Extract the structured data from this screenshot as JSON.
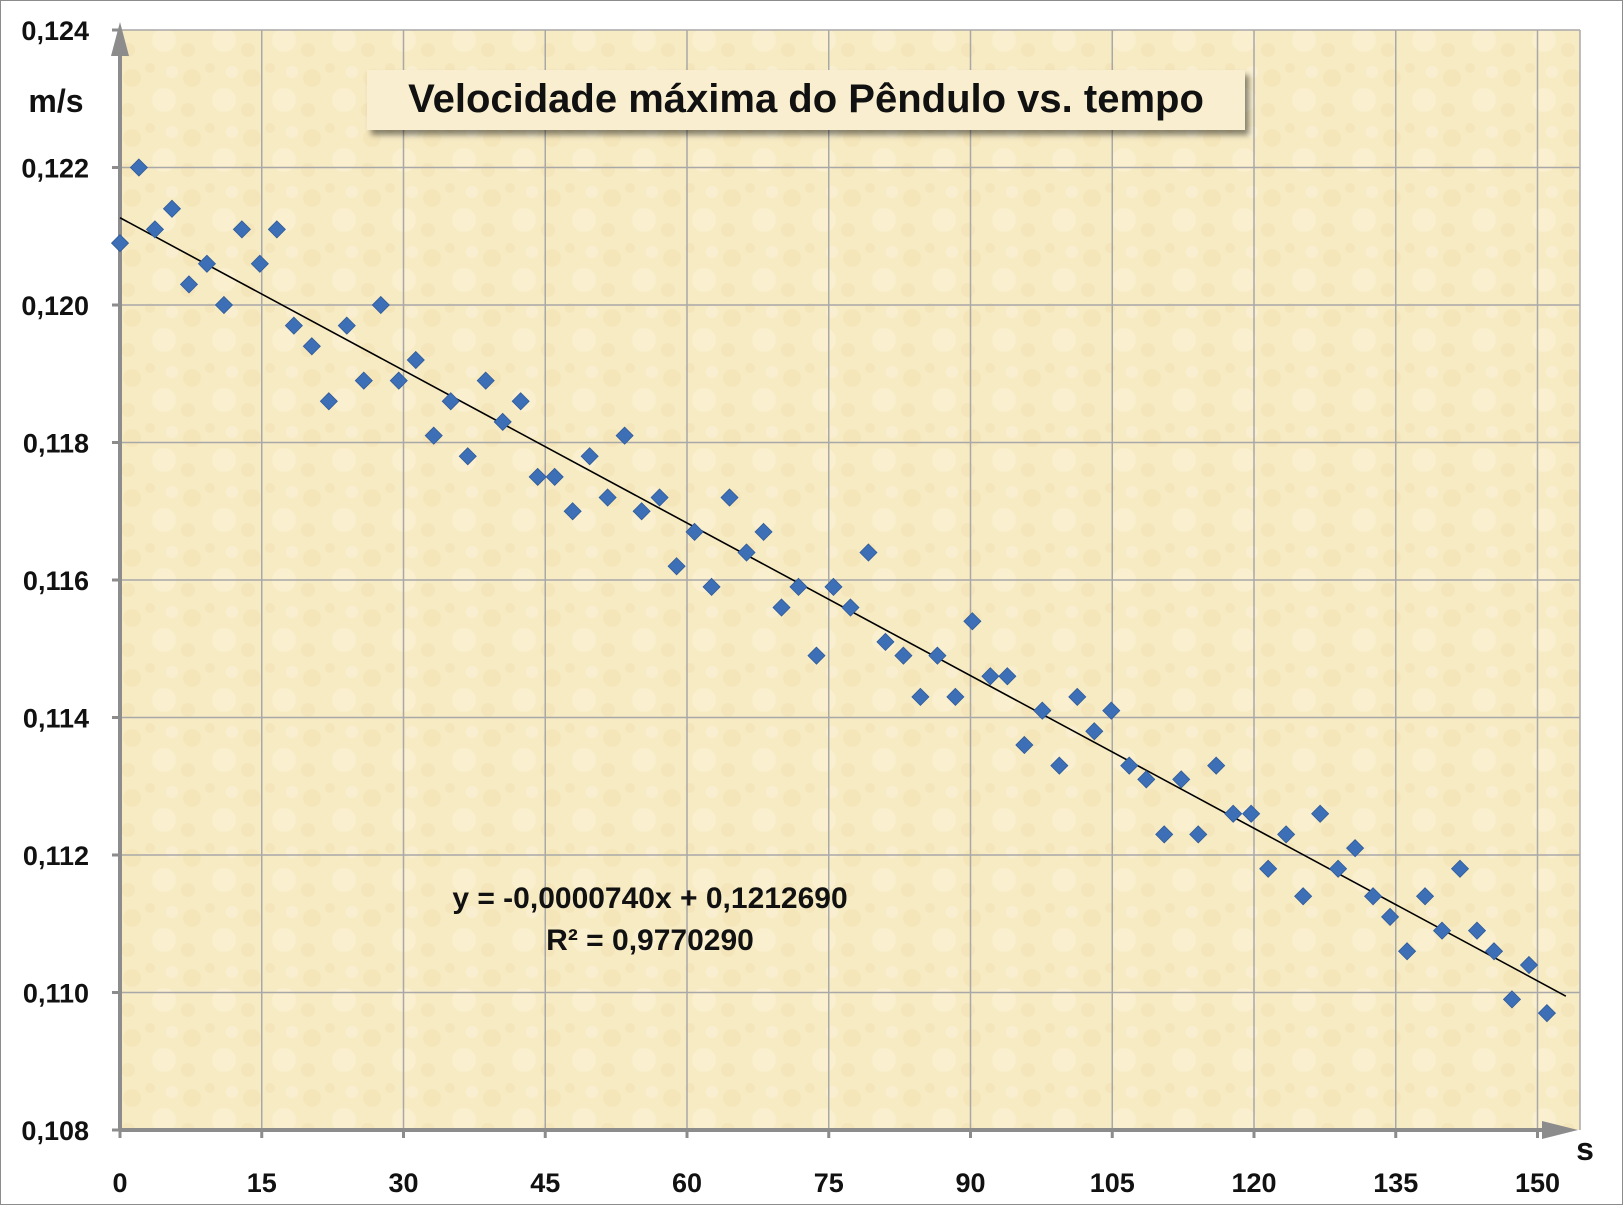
{
  "chart_data": {
    "type": "scatter",
    "title": "Velocidade máxima do Pêndulo vs. tempo",
    "xlabel": "s",
    "ylabel": "m/s",
    "xlim": [
      0,
      155
    ],
    "ylim": [
      0.108,
      0.124
    ],
    "x_ticks": [
      0,
      15,
      30,
      45,
      60,
      75,
      90,
      105,
      120,
      135,
      150
    ],
    "x_tick_labels": [
      "0",
      "15",
      "30",
      "45",
      "60",
      "75",
      "90",
      "105",
      "120",
      "135",
      "150"
    ],
    "y_ticks": [
      0.108,
      0.11,
      0.112,
      0.114,
      0.116,
      0.118,
      0.12,
      0.122,
      0.124
    ],
    "y_tick_labels": [
      "0,108",
      "0,110",
      "0,112",
      "0,114",
      "0,116",
      "0,118",
      "0,120",
      "0,122",
      "0,124"
    ],
    "grid": true,
    "series": [
      {
        "marker": "diamond",
        "color": "#3d6fb6",
        "points": [
          [
            0.0,
            0.1209
          ],
          [
            2.0,
            0.122
          ],
          [
            3.7,
            0.1211
          ],
          [
            5.5,
            0.1214
          ],
          [
            7.3,
            0.1203
          ],
          [
            9.2,
            0.1206
          ],
          [
            11.0,
            0.12
          ],
          [
            12.9,
            0.1211
          ],
          [
            14.8,
            0.1206
          ],
          [
            16.6,
            0.1211
          ],
          [
            18.4,
            0.1197
          ],
          [
            20.3,
            0.1194
          ],
          [
            22.1,
            0.1186
          ],
          [
            24.0,
            0.1197
          ],
          [
            25.8,
            0.1189
          ],
          [
            27.6,
            0.12
          ],
          [
            29.5,
            0.1189
          ],
          [
            31.3,
            0.1192
          ],
          [
            33.2,
            0.1181
          ],
          [
            35.0,
            0.1186
          ],
          [
            36.8,
            0.1178
          ],
          [
            38.7,
            0.1189
          ],
          [
            40.5,
            0.1183
          ],
          [
            42.4,
            0.1186
          ],
          [
            44.2,
            0.1175
          ],
          [
            46.0,
            0.1175
          ],
          [
            47.9,
            0.117
          ],
          [
            49.7,
            0.1178
          ],
          [
            51.6,
            0.1172
          ],
          [
            53.4,
            0.1181
          ],
          [
            55.2,
            0.117
          ],
          [
            57.1,
            0.1172
          ],
          [
            58.9,
            0.1162
          ],
          [
            60.8,
            0.1167
          ],
          [
            62.6,
            0.1159
          ],
          [
            64.5,
            0.1172
          ],
          [
            66.3,
            0.1164
          ],
          [
            68.1,
            0.1167
          ],
          [
            70.0,
            0.1156
          ],
          [
            71.8,
            0.1159
          ],
          [
            73.7,
            0.1149
          ],
          [
            75.5,
            0.1159
          ],
          [
            77.3,
            0.1156
          ],
          [
            79.2,
            0.1164
          ],
          [
            81.0,
            0.1151
          ],
          [
            82.9,
            0.1149
          ],
          [
            84.7,
            0.1143
          ],
          [
            86.5,
            0.1149
          ],
          [
            88.4,
            0.1143
          ],
          [
            90.2,
            0.1154
          ],
          [
            92.1,
            0.1146
          ],
          [
            93.9,
            0.1146
          ],
          [
            95.7,
            0.1136
          ],
          [
            97.6,
            0.1141
          ],
          [
            99.4,
            0.1133
          ],
          [
            101.3,
            0.1143
          ],
          [
            103.1,
            0.1138
          ],
          [
            104.9,
            0.1141
          ],
          [
            106.8,
            0.1133
          ],
          [
            108.6,
            0.1131
          ],
          [
            110.5,
            0.1123
          ],
          [
            112.3,
            0.1131
          ],
          [
            114.1,
            0.1123
          ],
          [
            116.0,
            0.1133
          ],
          [
            117.8,
            0.1126
          ],
          [
            119.7,
            0.1126
          ],
          [
            121.5,
            0.1118
          ],
          [
            123.4,
            0.1123
          ],
          [
            125.2,
            0.1114
          ],
          [
            127.0,
            0.1126
          ],
          [
            128.9,
            0.1118
          ],
          [
            130.7,
            0.1121
          ],
          [
            132.6,
            0.1114
          ],
          [
            134.4,
            0.1111
          ],
          [
            136.2,
            0.1106
          ],
          [
            138.1,
            0.1114
          ],
          [
            139.9,
            0.1109
          ],
          [
            141.8,
            0.1118
          ],
          [
            143.6,
            0.1109
          ],
          [
            145.4,
            0.1106
          ],
          [
            147.3,
            0.1099
          ],
          [
            149.1,
            0.1104
          ],
          [
            151.0,
            0.1097
          ]
        ]
      }
    ],
    "trendline": {
      "type": "linear",
      "slope": -7.4e-05,
      "intercept": 0.121269,
      "x_range": [
        0,
        153
      ],
      "color": "#000000"
    },
    "annotations": {
      "equation": "y = -0,0000740x + 0,1212690",
      "r_squared": "R² = 0,9770290"
    },
    "colors": {
      "plot_background": "#f7ebc4",
      "grid": "#a8a8a8",
      "axis": "#8c8c8c",
      "marker": "#3d6fb6"
    }
  }
}
